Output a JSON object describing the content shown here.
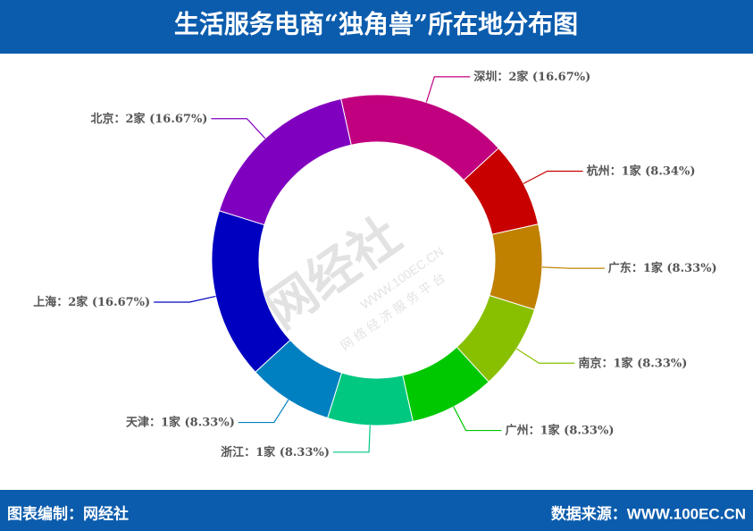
{
  "header": {
    "title": "生活服务电商“独角兽”所在地分布图"
  },
  "chart_data": {
    "type": "donut",
    "categories": [
      "深圳",
      "杭州",
      "广东",
      "南京",
      "广州",
      "浙江",
      "天津",
      "上海",
      "北京"
    ],
    "values": [
      16.67,
      8.34,
      8.33,
      8.33,
      8.33,
      8.33,
      8.33,
      16.67,
      16.67
    ],
    "value_labels": [
      "：2家 (16.67%)",
      "：1家 (8.34%)",
      "：1家 (8.33%)",
      "：1家 (8.33%)",
      "：1家 (8.33%)",
      "：1家 (8.33%)",
      "：1家 (8.33%)",
      "：2家 (16.67%)",
      "：2家 (16.67%)"
    ],
    "colors": [
      "#c0007f",
      "#c80000",
      "#c08000",
      "#88c000",
      "#00c800",
      "#00c880",
      "#0080c0",
      "#0000c0",
      "#8000c0"
    ]
  },
  "watermark": {
    "brand": "网经社",
    "url": "WWW.100EC.CN",
    "slogan": "网 络 经 济 服 务 平 台"
  },
  "footer": {
    "left": "图表编制：网经社",
    "right": "数据来源：WWW.100EC.CN"
  }
}
